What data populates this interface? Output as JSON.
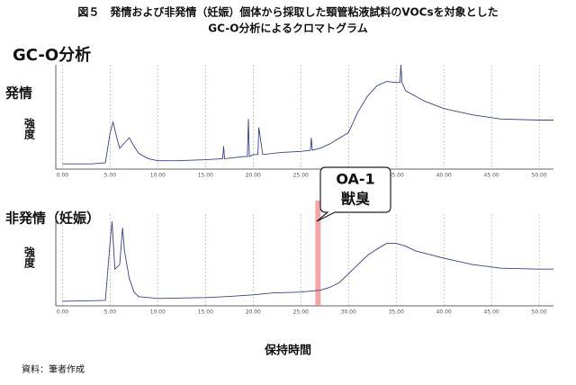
{
  "title": [
    "図５　発情および非発情（妊娠）個体から採取した頸管粘液試料のVOCsを対象とした",
    "GC-O分析によるクロマトグラム"
  ],
  "subtitle": "GC-O分析",
  "x_axis_label": "保持時間",
  "source": "資料：筆者作成",
  "callout": [
    "OA-1",
    "獣臭"
  ],
  "chart_data": [
    {
      "type": "line",
      "title": "発情",
      "y_label": "強度",
      "grid": true,
      "x": [
        0,
        3,
        4.5,
        5,
        5.3,
        5.7,
        6,
        6.5,
        7,
        7.5,
        8,
        9,
        10,
        12,
        15,
        16.8,
        16.9,
        17,
        19,
        19.4,
        19.5,
        19.6,
        20,
        20.5,
        20.6,
        21,
        23,
        25,
        26,
        26.1,
        26.2,
        27,
        28,
        30,
        31,
        32,
        33,
        34,
        35,
        35.4,
        35.5,
        35.6,
        36,
        38,
        40,
        43,
        46,
        50,
        51.5
      ],
      "series": [
        {
          "name": "発情",
          "color": "#3a3f8f",
          "values": [
            5,
            5,
            6,
            35,
            45,
            30,
            20,
            25,
            30,
            22,
            15,
            10,
            8,
            8,
            9,
            10,
            22,
            10,
            12,
            12,
            48,
            12,
            14,
            14,
            40,
            14,
            16,
            17,
            18,
            30,
            18,
            20,
            24,
            35,
            55,
            70,
            80,
            84,
            83,
            83,
            100,
            83,
            75,
            65,
            58,
            52,
            48,
            47,
            47
          ]
        }
      ],
      "xlim": [
        -0.7,
        51.5
      ],
      "ylim": [
        0,
        100
      ],
      "xticks": [
        {
          "value": 0,
          "label": "0.00"
        },
        {
          "value": 5,
          "label": "5.00"
        },
        {
          "value": 10,
          "label": "10.00"
        },
        {
          "value": 15,
          "label": "15.00"
        },
        {
          "value": 20,
          "label": "20.00"
        },
        {
          "value": 25,
          "label": "25.00"
        },
        {
          "value": 30,
          "label": "30.00"
        },
        {
          "value": 35,
          "label": "35.00"
        },
        {
          "value": 40,
          "label": "40.00"
        },
        {
          "value": 45,
          "label": "45.00"
        },
        {
          "value": 50,
          "label": "50.00"
        }
      ]
    },
    {
      "type": "line",
      "title": "非発情（妊娠）",
      "y_label": "強度",
      "grid": true,
      "highlight_x": 26.8,
      "x": [
        0,
        4.5,
        5,
        5.2,
        5.5,
        6,
        6.3,
        6.5,
        7,
        7.5,
        8,
        10,
        15,
        17,
        20,
        22,
        25,
        27,
        28,
        29,
        30,
        31,
        32,
        33,
        34,
        35,
        36,
        37,
        40,
        43,
        46,
        50,
        51.5
      ],
      "series": [
        {
          "name": "非発情（妊娠）",
          "color": "#3a3f8f",
          "values": [
            5,
            6,
            70,
            92,
            40,
            45,
            85,
            60,
            30,
            15,
            10,
            8,
            9,
            10,
            12,
            14,
            15,
            17,
            20,
            25,
            35,
            45,
            55,
            62,
            68,
            68,
            65,
            60,
            52,
            45,
            41,
            40,
            40
          ]
        }
      ],
      "xlim": [
        -0.7,
        51.5
      ],
      "ylim": [
        0,
        100
      ],
      "xticks": [
        {
          "value": 0,
          "label": "0.00"
        },
        {
          "value": 5,
          "label": "5.00"
        },
        {
          "value": 10,
          "label": "10.00"
        },
        {
          "value": 15,
          "label": "15.00"
        },
        {
          "value": 20,
          "label": "20.00"
        },
        {
          "value": 25,
          "label": "25.00"
        },
        {
          "value": 30,
          "label": "30.00"
        },
        {
          "value": 35,
          "label": "35.00"
        },
        {
          "value": 40,
          "label": "40.00"
        },
        {
          "value": 45,
          "label": "45.00"
        },
        {
          "value": 50,
          "label": "50.00"
        }
      ]
    }
  ]
}
